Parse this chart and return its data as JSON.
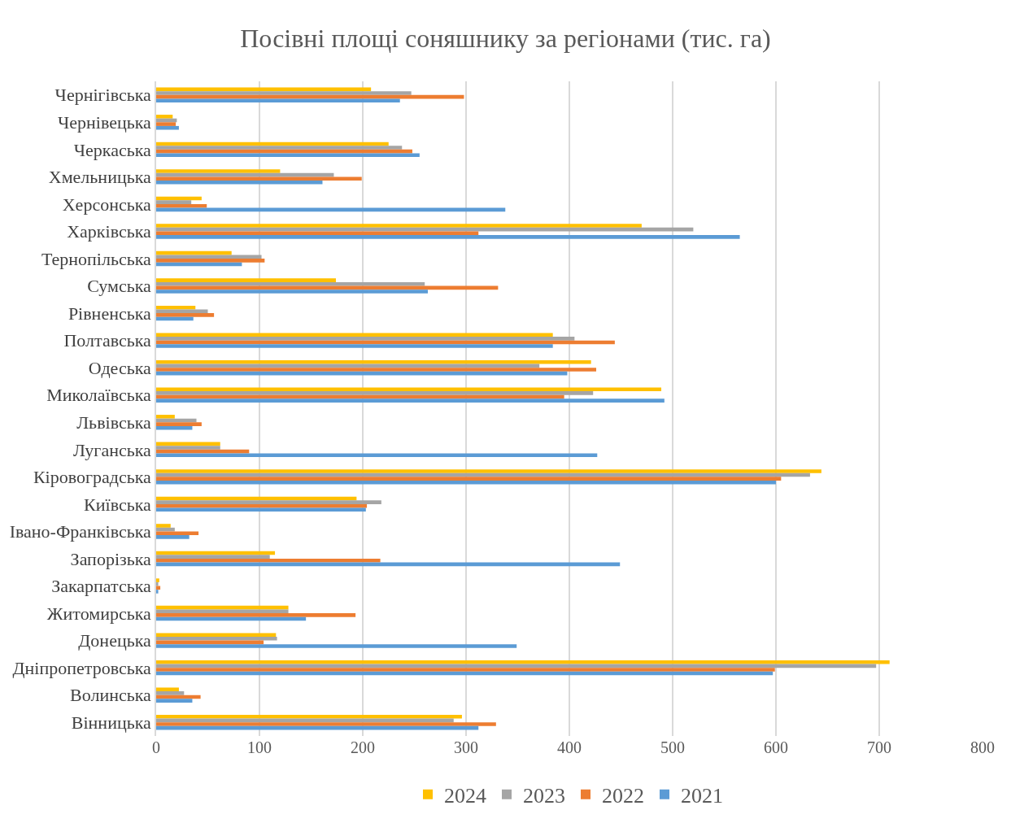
{
  "chart_data": {
    "type": "bar",
    "orientation": "horizontal",
    "title": "Посівні площі соняшнику за регіонами (тис. га)",
    "categories": [
      "Чернігівська",
      "Чернівецька",
      "Черкаська",
      "Хмельницька",
      "Херсонська",
      "Харківська",
      "Тернопільська",
      "Сумська",
      "Рівненська",
      "Полтавська",
      "Одеська",
      "Миколаївська",
      "Львівська",
      "Луганська",
      "Кіровоградська",
      "Київська",
      "Івано-Франківська",
      "Запорізька",
      "Закарпатська",
      "Житомирська",
      "Донецька",
      "Дніпропетровська",
      "Волинська",
      "Вінницька"
    ],
    "series": [
      {
        "name": "2024",
        "color": "#ffc000",
        "values": [
          208,
          16,
          225,
          120,
          44,
          470,
          73,
          174,
          38,
          384,
          421,
          489,
          18,
          62,
          644,
          194,
          14,
          115,
          3,
          128,
          116,
          710,
          22,
          296
        ]
      },
      {
        "name": "2023",
        "color": "#a5a5a5",
        "values": [
          247,
          20,
          238,
          172,
          34,
          520,
          102,
          260,
          50,
          405,
          371,
          423,
          39,
          62,
          633,
          218,
          18,
          110,
          2,
          128,
          117,
          697,
          27,
          288
        ]
      },
      {
        "name": "2022",
        "color": "#ed7d31",
        "values": [
          298,
          19,
          248,
          199,
          49,
          312,
          105,
          331,
          56,
          444,
          426,
          395,
          44,
          90,
          605,
          204,
          41,
          217,
          4,
          193,
          104,
          599,
          43,
          329
        ]
      },
      {
        "name": "2021",
        "color": "#5b9bd5",
        "values": [
          236,
          22,
          255,
          161,
          338,
          565,
          83,
          263,
          36,
          384,
          398,
          492,
          35,
          427,
          600,
          203,
          32,
          449,
          2,
          145,
          349,
          597,
          35,
          312
        ]
      }
    ],
    "xlim": [
      0,
      800
    ],
    "xticks": [
      0,
      100,
      200,
      300,
      400,
      500,
      600,
      700,
      800
    ],
    "grid": "x",
    "legend": "bottom"
  }
}
